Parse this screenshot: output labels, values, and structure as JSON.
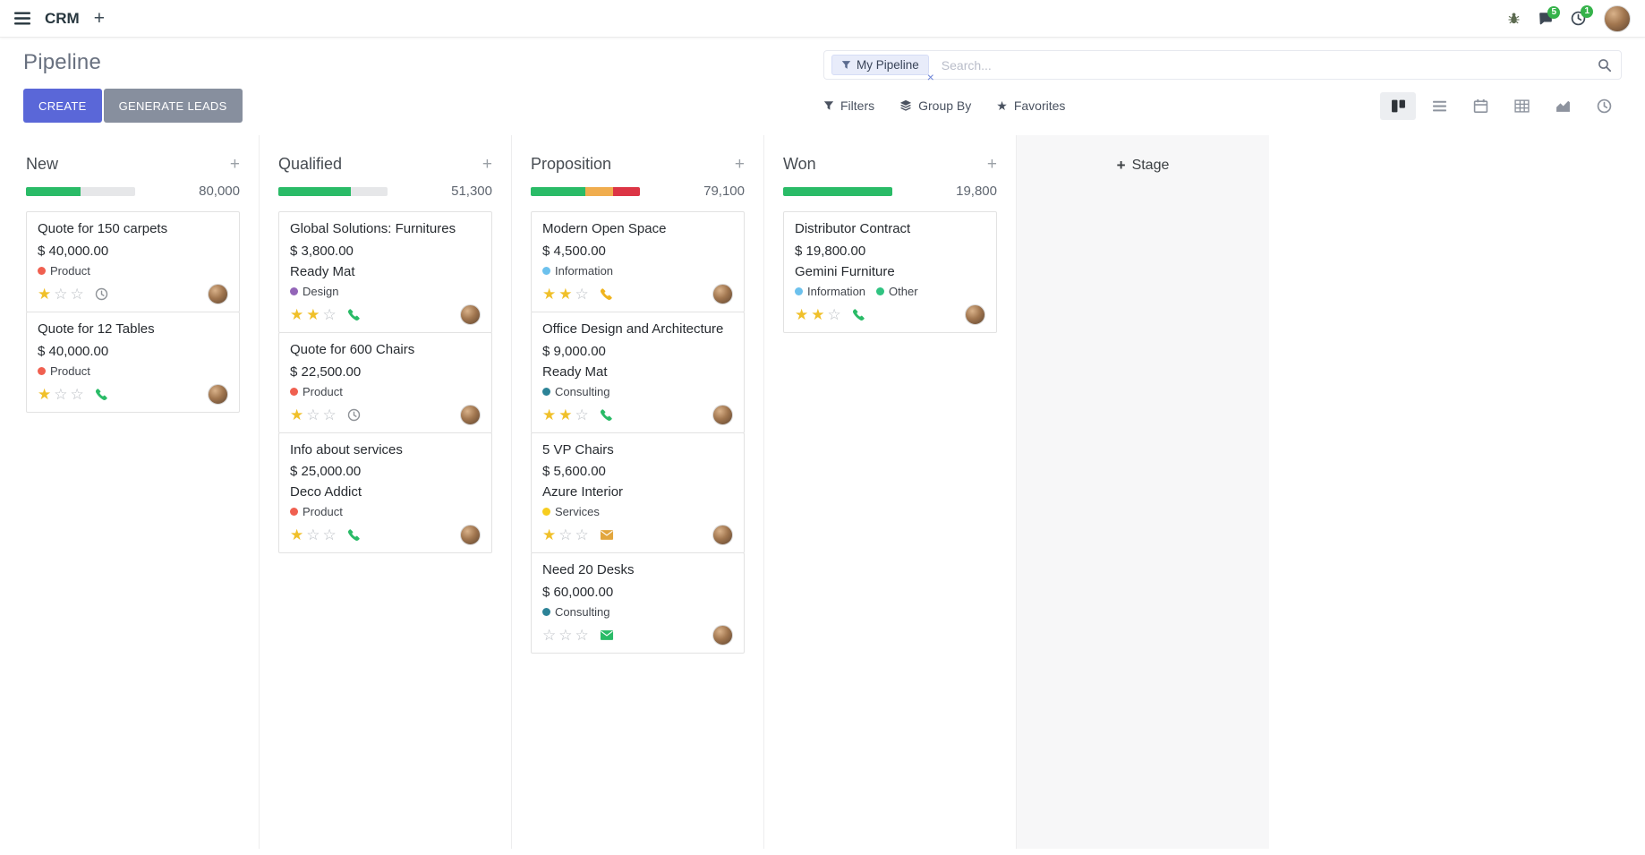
{
  "navbar": {
    "app_name": "CRM",
    "messages_badge": "5",
    "activities_badge": "1"
  },
  "control_panel": {
    "title": "Pipeline",
    "create_label": "CREATE",
    "generate_leads_label": "GENERATE LEADS",
    "search": {
      "facet_label": "My Pipeline",
      "facet_remove": "×",
      "placeholder": "Search..."
    },
    "filters_label": "Filters",
    "group_by_label": "Group By",
    "favorites_label": "Favorites"
  },
  "board": {
    "add_stage_label": "Stage",
    "columns": [
      {
        "name": "New",
        "counter": "80,000",
        "progress": [
          {
            "color": "#2abb67",
            "pct": 50
          }
        ],
        "cards": [
          {
            "title": "Quote for 150 carpets",
            "amount": "$ 40,000.00",
            "tags": [
              {
                "label": "Product",
                "color": "#f06050"
              }
            ],
            "stars": 1,
            "activity": {
              "icon": "clock",
              "color": "#8f9398"
            }
          },
          {
            "title": "Quote for 12 Tables",
            "amount": "$ 40,000.00",
            "tags": [
              {
                "label": "Product",
                "color": "#f06050"
              }
            ],
            "stars": 1,
            "activity": {
              "icon": "phone",
              "color": "#2abb67"
            }
          }
        ]
      },
      {
        "name": "Qualified",
        "counter": "51,300",
        "progress": [
          {
            "color": "#2abb67",
            "pct": 66
          }
        ],
        "cards": [
          {
            "title": "Global Solutions: Furnitures",
            "amount": "$ 3,800.00",
            "partner": "Ready Mat",
            "tags": [
              {
                "label": "Design",
                "color": "#9365b8"
              }
            ],
            "stars": 2,
            "activity": {
              "icon": "phone",
              "color": "#2abb67"
            }
          },
          {
            "title": "Quote for 600 Chairs",
            "amount": "$ 22,500.00",
            "tags": [
              {
                "label": "Product",
                "color": "#f06050"
              }
            ],
            "stars": 1,
            "activity": {
              "icon": "clock",
              "color": "#8f9398"
            }
          },
          {
            "title": "Info about services",
            "amount": "$ 25,000.00",
            "partner": "Deco Addict",
            "tags": [
              {
                "label": "Product",
                "color": "#f06050"
              }
            ],
            "stars": 1,
            "activity": {
              "icon": "phone",
              "color": "#2abb67"
            }
          }
        ]
      },
      {
        "name": "Proposition",
        "counter": "79,100",
        "progress": [
          {
            "color": "#2abb67",
            "pct": 50
          },
          {
            "color": "#f0ad4e",
            "pct": 25
          },
          {
            "color": "#dc3545",
            "pct": 25
          }
        ],
        "cards": [
          {
            "title": "Modern Open Space",
            "amount": "$ 4,500.00",
            "tags": [
              {
                "label": "Information",
                "color": "#6cc1ed"
              }
            ],
            "stars": 2,
            "activity": {
              "icon": "phone",
              "color": "#f0b41e"
            }
          },
          {
            "title": "Office Design and Architecture",
            "amount": "$ 9,000.00",
            "partner": "Ready Mat",
            "tags": [
              {
                "label": "Consulting",
                "color": "#2c8397"
              }
            ],
            "stars": 2,
            "activity": {
              "icon": "phone",
              "color": "#2abb67"
            }
          },
          {
            "title": "5 VP Chairs",
            "amount": "$ 5,600.00",
            "partner": "Azure Interior",
            "tags": [
              {
                "label": "Services",
                "color": "#f7cd1f"
              }
            ],
            "stars": 1,
            "activity": {
              "icon": "envelope",
              "color": "#e2a63d"
            }
          },
          {
            "title": "Need 20 Desks",
            "amount": "$ 60,000.00",
            "tags": [
              {
                "label": "Consulting",
                "color": "#2c8397"
              }
            ],
            "stars": 0,
            "activity": {
              "icon": "envelope",
              "color": "#2abb67"
            }
          }
        ]
      },
      {
        "name": "Won",
        "counter": "19,800",
        "progress": [
          {
            "color": "#2abb67",
            "pct": 100
          }
        ],
        "cards": [
          {
            "title": "Distributor Contract",
            "amount": "$ 19,800.00",
            "partner": "Gemini Furniture",
            "tags": [
              {
                "label": "Information",
                "color": "#6cc1ed"
              },
              {
                "label": "Other",
                "color": "#30c381"
              }
            ],
            "stars": 2,
            "activity": {
              "icon": "phone",
              "color": "#2abb67"
            }
          }
        ]
      }
    ]
  },
  "colors": {
    "primary": "#5a67d8",
    "secondary": "#878f9e",
    "success": "#2abb67",
    "warning": "#f0ad4e",
    "danger": "#dc3545",
    "star_active": "#f0c02a",
    "badge": "#35b24a"
  }
}
